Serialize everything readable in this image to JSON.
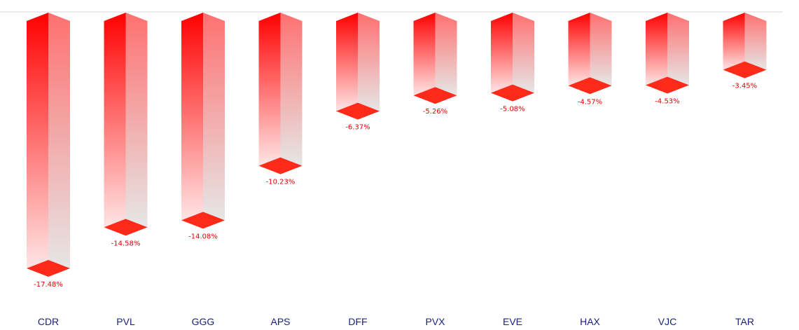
{
  "chart_data": {
    "type": "bar",
    "categories": [
      "CDR",
      "PVL",
      "GGG",
      "APS",
      "DFF",
      "PVX",
      "EVE",
      "HAX",
      "VJC",
      "TAR"
    ],
    "values": [
      -17.48,
      -14.58,
      -14.08,
      -10.23,
      -6.37,
      -5.26,
      -5.08,
      -4.57,
      -4.53,
      -3.45
    ],
    "value_labels": [
      "-17.48%",
      "-14.58%",
      "-14.08%",
      "-10.23%",
      "-6.37%",
      "-5.26%",
      "-5.08%",
      "-4.57%",
      "-4.53%",
      "-3.45%"
    ],
    "title": "",
    "xlabel": "",
    "ylabel": "",
    "ylim": [
      -17.48,
      0
    ],
    "grid": false,
    "legend": "none",
    "style": "3d-bars",
    "colors": {
      "bar_top": "#ff0000",
      "bar_bottom": "#ffe5e5",
      "side_top": "#ff7070",
      "side_bottom": "#e6e6e6",
      "cap": "#ff2a1a",
      "value_label": "#e60000",
      "category_label": "#1a237e",
      "baseline": "#d9d9d9"
    }
  }
}
